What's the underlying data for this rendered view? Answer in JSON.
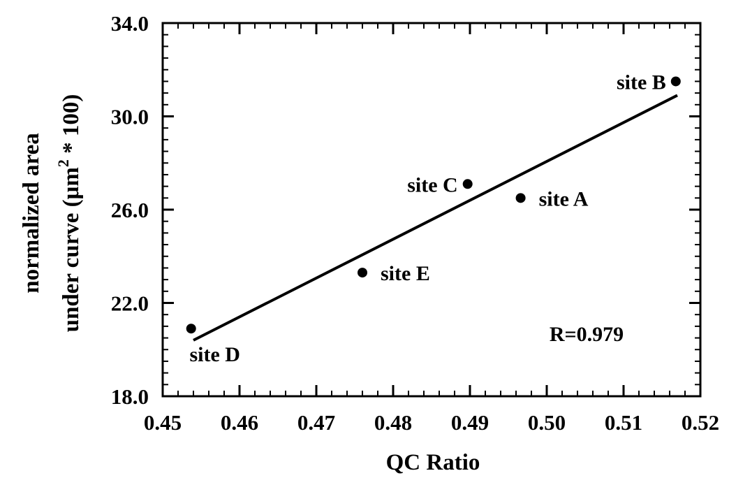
{
  "chart_data": {
    "type": "scatter",
    "xlabel": "QC Ratio",
    "ylabel_line1": "normalized area",
    "ylabel_line2_prefix": "under curve (",
    "ylabel_line2_mu": "μ",
    "ylabel_line2_unit": "m",
    "ylabel_line2_exp": "2",
    "ylabel_line2_suffix": " * 100)",
    "xlim": [
      0.45,
      0.52
    ],
    "ylim": [
      18.0,
      34.0
    ],
    "xticks": [
      "0.45",
      "0.46",
      "0.47",
      "0.48",
      "0.49",
      "0.50",
      "0.51",
      "0.52"
    ],
    "xtick_values": [
      0.45,
      0.46,
      0.47,
      0.48,
      0.49,
      0.5,
      0.51,
      0.52
    ],
    "yticks": [
      "18.0",
      "22.0",
      "26.0",
      "30.0",
      "34.0"
    ],
    "ytick_values": [
      18.0,
      22.0,
      26.0,
      30.0,
      34.0
    ],
    "x_minor_step": 0.002,
    "y_minor_step": 0.5,
    "points": [
      {
        "label": "site A",
        "x": 0.4966,
        "y": 26.5,
        "label_pos": "right"
      },
      {
        "label": "site B",
        "x": 0.5168,
        "y": 31.5,
        "label_pos": "left"
      },
      {
        "label": "site C",
        "x": 0.4897,
        "y": 27.1,
        "label_pos": "left"
      },
      {
        "label": "site D",
        "x": 0.4537,
        "y": 20.9,
        "label_pos": "below"
      },
      {
        "label": "site E",
        "x": 0.476,
        "y": 23.3,
        "label_pos": "right"
      }
    ],
    "fit_line": {
      "x": [
        0.454,
        0.517
      ],
      "y": [
        20.4,
        30.9
      ]
    },
    "annotation": "R=0.979",
    "grid": false,
    "legend": "none"
  }
}
